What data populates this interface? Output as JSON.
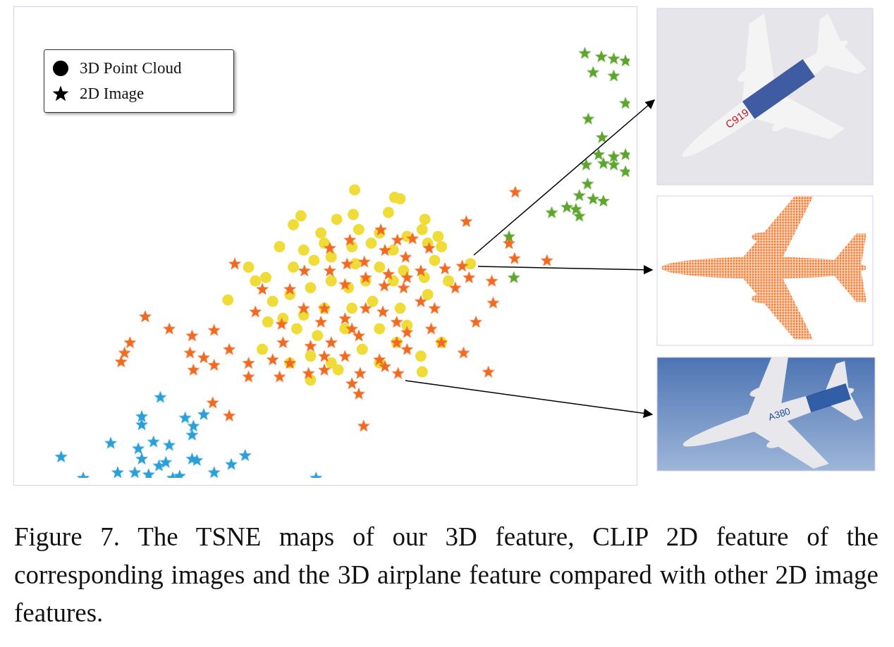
{
  "chart_data": {
    "type": "scatter",
    "xlim": [
      20,
      903
    ],
    "ylim": [
      12,
      690
    ],
    "tick_labels": false,
    "grid": false,
    "legend": "upper left",
    "series": [
      {
        "name": "3D Point Cloud",
        "marker": "circle",
        "color": "#efdc38",
        "x": [
          504,
          562,
          570,
          426,
          478,
          502,
          553,
          606,
          602,
          415,
          455,
          510,
          540,
          580,
          625,
          395,
          430,
          460,
          500,
          528,
          560,
          610,
          630,
          350,
          375,
          415,
          445,
          470,
          505,
          540,
          575,
          620,
          672,
          320,
          360,
          385,
          410,
          440,
          470,
          495,
          520,
          560,
          605,
          640,
          378,
          400,
          430,
          460,
          500,
          530,
          570,
          610,
          370,
          420,
          450,
          490,
          540,
          580,
          630,
          440,
          470,
          515,
          565,
          600,
          440,
          480,
          540,
          602,
          410
        ],
        "values": [
          433,
          422,
          420,
          395,
          390,
          397,
          400,
          390,
          375,
          382,
          370,
          375,
          370,
          365,
          365,
          350,
          345,
          355,
          350,
          355,
          345,
          355,
          350,
          320,
          305,
          320,
          330,
          335,
          325,
          320,
          315,
          330,
          325,
          272,
          300,
          270,
          280,
          290,
          300,
          290,
          300,
          300,
          305,
          300,
          240,
          245,
          250,
          260,
          260,
          270,
          260,
          280,
          200,
          230,
          220,
          230,
          230,
          235,
          210,
          190,
          180,
          200,
          210,
          190,
          155,
          170,
          180,
          167,
          180
        ]
      },
      {
        "name": "2D Image",
        "marker": "star",
        "color": "#f06a22",
        "x": [
          737,
          666,
          542,
          497,
          566,
          588,
          612,
          468,
          518,
          330,
          493,
          548,
          578,
          635,
          703,
          670,
          736,
          783,
          728,
          660,
          600,
          468,
          431,
          553,
          580,
          520,
          490,
          370,
          410,
          650,
          547,
          575,
          600,
          620,
          520,
          460,
          430,
          360,
          705,
          200,
          455,
          490,
          565,
          545,
          398,
          500,
          580,
          615,
          680,
          630,
          268,
          300,
          235,
          565,
          400,
          440,
          470,
          510,
          178,
          170,
          165,
          265,
          285,
          322,
          350,
          385,
          410,
          460,
          490,
          540,
          580,
          662,
          270,
          300,
          437,
          460,
          512,
          548,
          567,
          698,
          350,
          395,
          500,
          510,
          298,
          322,
          517
        ],
        "values": [
          430,
          387,
          375,
          360,
          360,
          362,
          348,
          348,
          328,
          325,
          325,
          345,
          335,
          318,
          300,
          305,
          333,
          330,
          355,
          322,
          315,
          315,
          315,
          310,
          305,
          305,
          295,
          288,
          288,
          290,
          293,
          290,
          270,
          260,
          260,
          260,
          260,
          255,
          268,
          248,
          240,
          245,
          240,
          255,
          237,
          230,
          225,
          230,
          240,
          210,
          220,
          228,
          230,
          210,
          210,
          205,
          210,
          220,
          210,
          195,
          182,
          195,
          188,
          200,
          180,
          185,
          180,
          190,
          190,
          185,
          200,
          195,
          170,
          177,
          165,
          170,
          165,
          175,
          165,
          167,
          160,
          160,
          150,
          135,
          122,
          103,
          88
        ]
      },
      {
        "name": "2D Image",
        "marker": "star",
        "color": "#5ea52f",
        "x": [
          838,
          862,
          880,
          897,
          850,
          880,
          897,
          843,
          863,
          858,
          880,
          897,
          840,
          865,
          880,
          897,
          842,
          830,
          850,
          865,
          812,
          825,
          790,
          830,
          728,
          735
        ],
        "values": [
          633,
          628,
          625,
          622,
          605,
          600,
          560,
          537,
          510,
          485,
          482,
          485,
          470,
          472,
          470,
          460,
          442,
          425,
          420,
          417,
          408,
          405,
          400,
          395,
          365,
          305
        ]
      },
      {
        "name": "2D Image",
        "marker": "star",
        "color": "#2a9fd8",
        "x": [
          222,
          195,
          195,
          258,
          285,
          270,
          150,
          190,
          212,
          235,
          268,
          78,
          195,
          230,
          275,
          345,
          325,
          160,
          185,
          220,
          250,
          300,
          110,
          448,
          240,
          205,
          268
        ],
        "values": [
          130,
          102,
          90,
          100,
          105,
          88,
          63,
          55,
          65,
          60,
          75,
          43,
          40,
          35,
          38,
          45,
          32,
          20,
          20,
          30,
          15,
          20,
          12,
          12,
          12,
          17,
          40
        ]
      }
    ]
  },
  "image_texts": [
    "C919",
    "A380"
  ],
  "caption": "Figure 7. The TSNE maps of our 3D feature, CLIP 2D feature of the corresponding images and the 3D airplane feature compared with other 2D image features."
}
